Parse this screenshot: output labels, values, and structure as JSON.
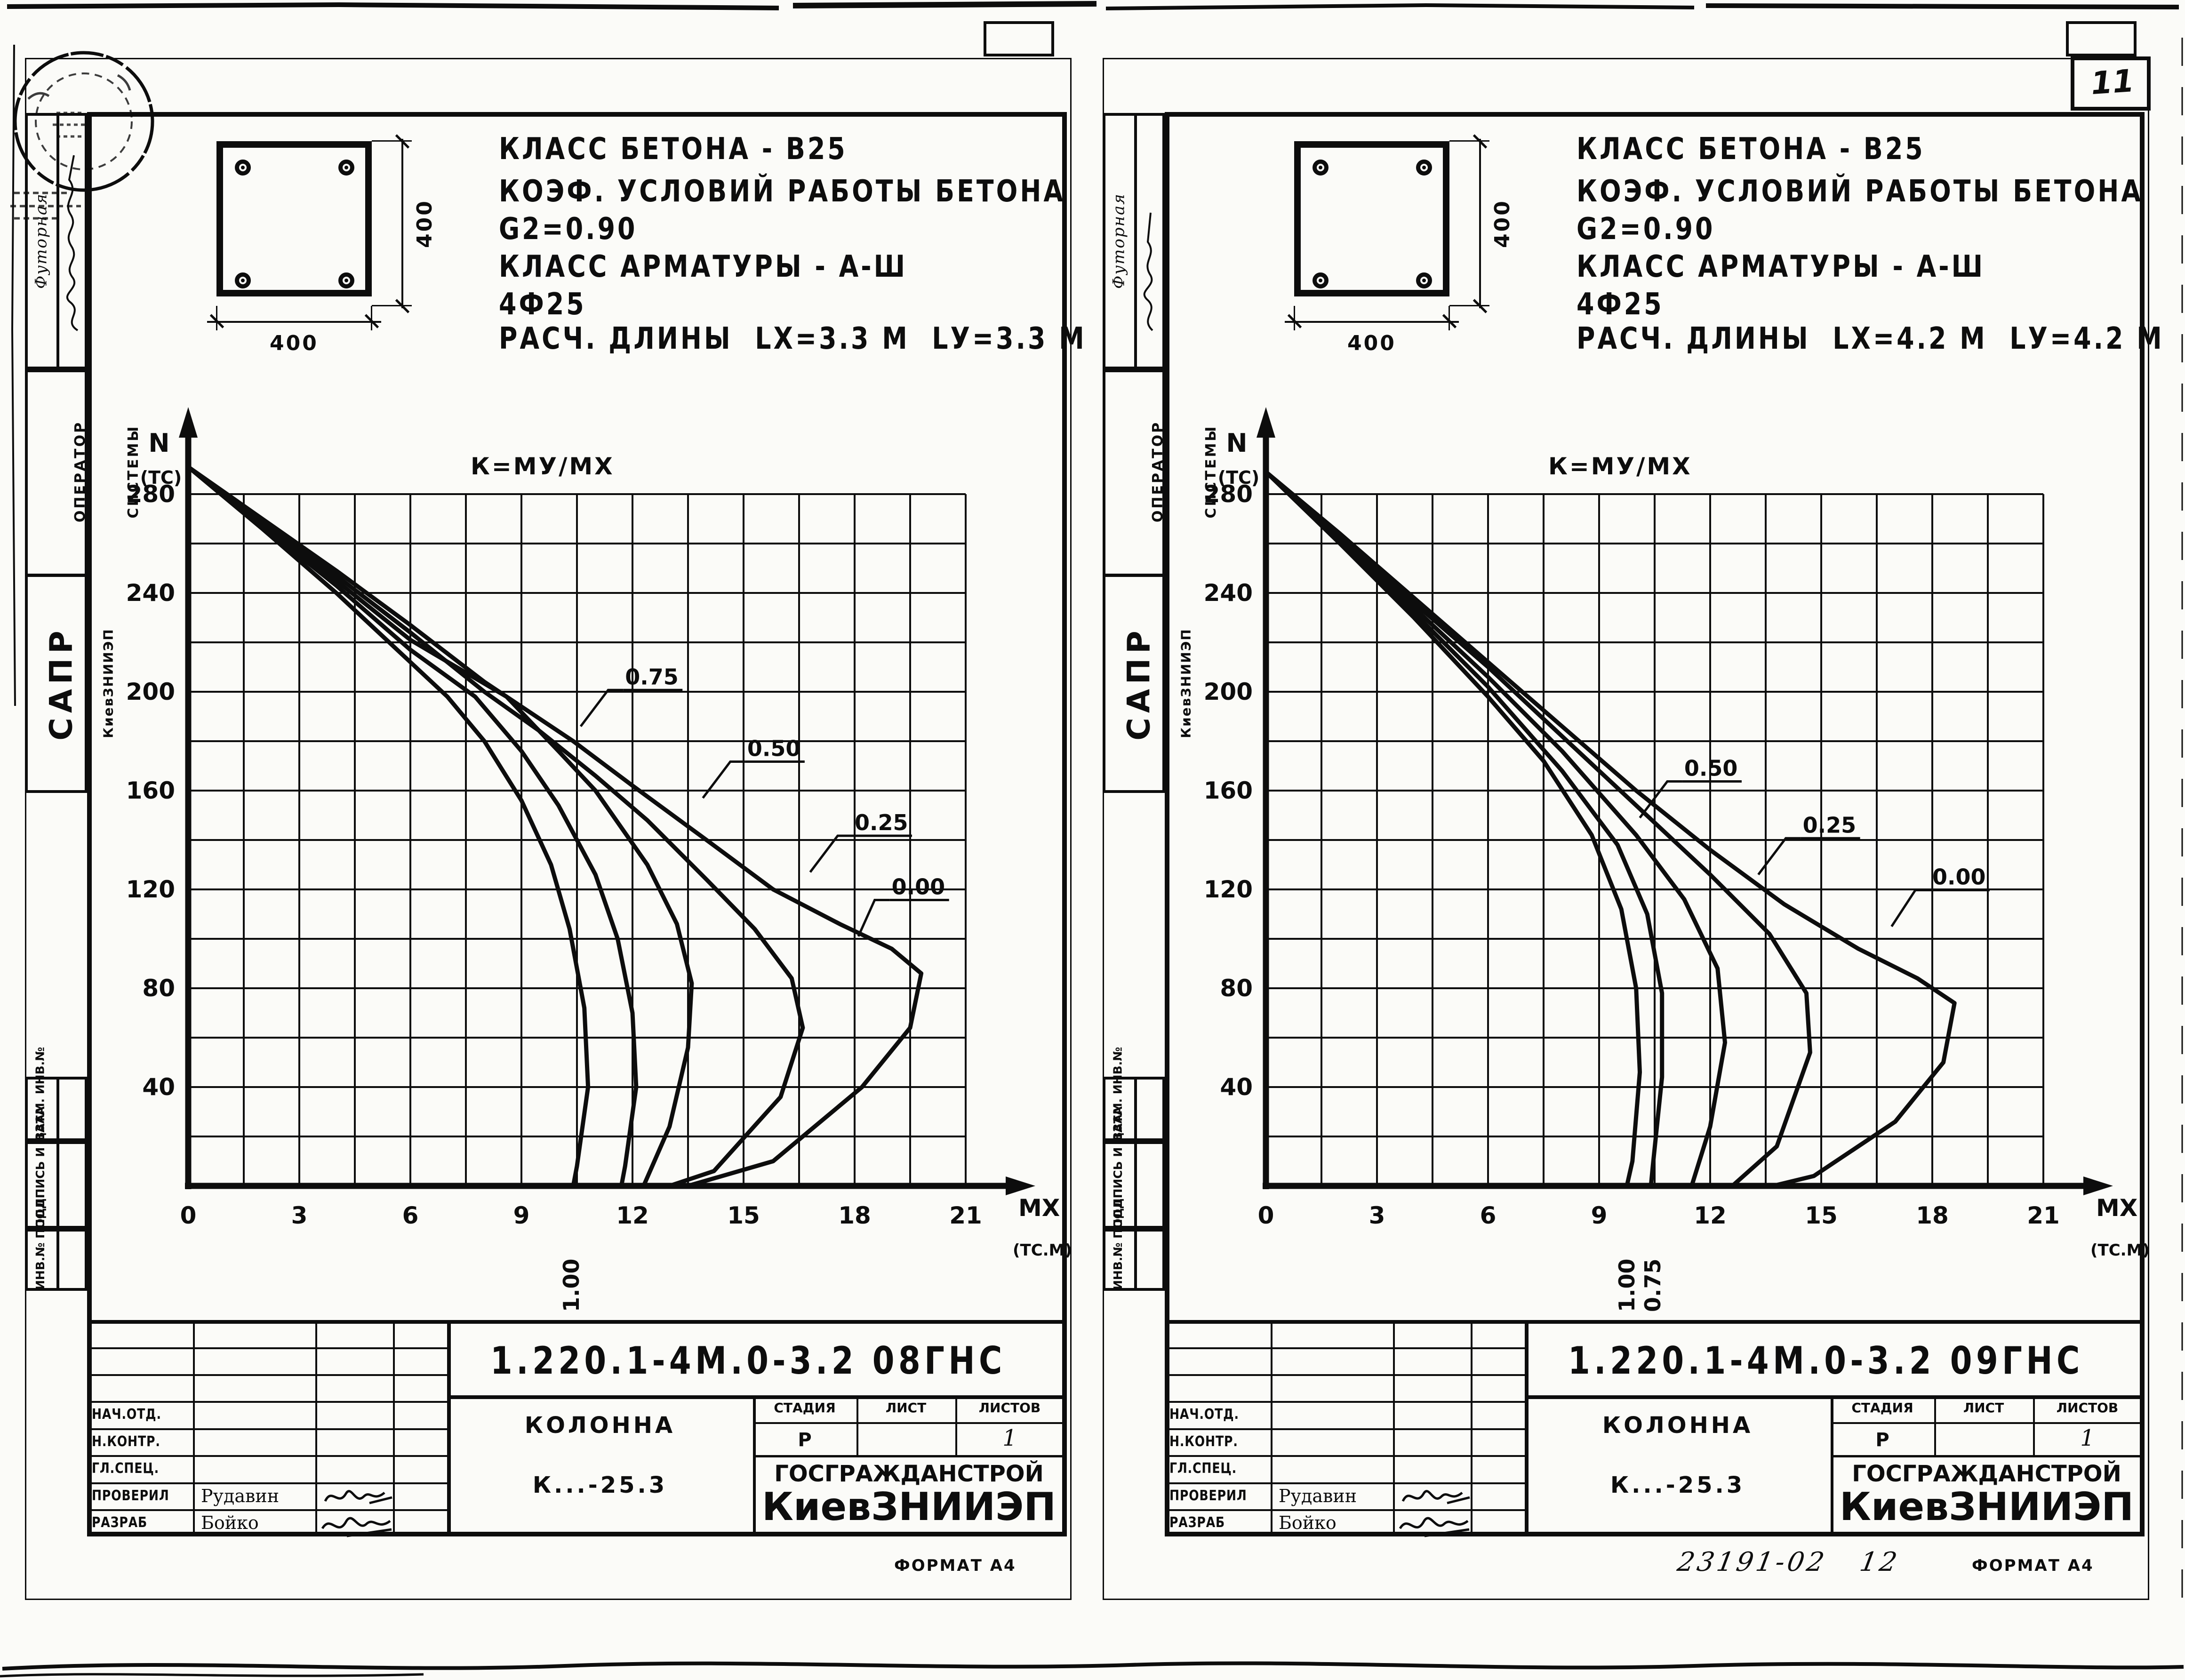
{
  "scan": {
    "page_number": "11",
    "format_note": "ФОРМАТ А4",
    "handwritten_note": "23191-02   12"
  },
  "sidebar": {
    "top_label": "Футорная",
    "operator": [
      "ОПЕРАТОР",
      "СИСТЕМЫ"
    ],
    "sapr": "САПР",
    "sapr_org": "КиевЗНИИЭП",
    "vzam": "ВЗАМ. ИНВ.№",
    "podpis": "ПОДПИСЬ И ДАТА",
    "inv": "ИНВ.№ ПОДЛ"
  },
  "titleblock": {
    "row_labels": [
      "НАЧ.ОТД.",
      "Н.КОНТР.",
      "ГЛ.СПЕЦ.",
      "ПРОВЕРИЛ",
      "РАЗРАБ"
    ],
    "proveril_name": "Рудавин",
    "razrab_name": "Бойко",
    "stage_headers": [
      "СТАДИЯ",
      "ЛИСТ",
      "ЛИСТОВ"
    ],
    "stage_value": "Р",
    "sheets_value": "1",
    "org_line1": "ГОСГРАЖДАНСТРОЙ",
    "org_line2": "КиевЗНИИЭП",
    "product": "КОЛОННА",
    "product_code": "К...-25.3"
  },
  "sheets": [
    {
      "doc_number": "1.220.1-4М.0-3.2 08ГНС",
      "section": {
        "width_dim": "400",
        "height_dim": "400"
      },
      "specs": [
        "КЛАСС БЕТОНА - В25",
        "КОЭФ. УСЛОВИЙ РАБОТЫ БЕТОНА",
        "G2=0.90",
        "КЛАСС АРМАТУРЫ - А-Ш",
        "4Ф25",
        "РАСЧ. ДЛИНЫ  LX=3.3 М  LУ=3.3 М"
      ]
    },
    {
      "doc_number": "1.220.1-4М.0-3.2 09ГНС",
      "section": {
        "width_dim": "400",
        "height_dim": "400"
      },
      "specs": [
        "КЛАСС БЕТОНА - В25",
        "КОЭФ. УСЛОВИЙ РАБОТЫ БЕТОНА",
        "G2=0.90",
        "КЛАСС АРМАТУРЫ - А-Ш",
        "4Ф25",
        "РАСЧ. ДЛИНЫ  LX=4.2 М  LУ=4.2 М"
      ]
    }
  ],
  "chart_data": [
    {
      "type": "line",
      "k_label": "К=МУ/МХ",
      "xlabel": "МХ",
      "xunit": "(ТС.М)",
      "ylabel": "N",
      "yunit": "(ТС)",
      "xlim": [
        0,
        21
      ],
      "ylim": [
        0,
        280
      ],
      "xticks": [
        0,
        3,
        6,
        9,
        12,
        15,
        18,
        21
      ],
      "yticks": [
        280,
        240,
        200,
        160,
        120,
        80,
        40
      ],
      "grid": true,
      "grid_step_x": 1.5,
      "grid_step_y": 20,
      "series": [
        {
          "name": "K=1.00",
          "points": [
            [
              0,
              291
            ],
            [
              2,
              266
            ],
            [
              4,
              240
            ],
            [
              6,
              212
            ],
            [
              7,
              198
            ],
            [
              8,
              180
            ],
            [
              9,
              156
            ],
            [
              9.8,
              130
            ],
            [
              10.3,
              104
            ],
            [
              10.7,
              72
            ],
            [
              10.8,
              40
            ],
            [
              10.5,
              8
            ],
            [
              10.4,
              0
            ]
          ]
        },
        {
          "name": "K=0.75",
          "points": [
            [
              0,
              291
            ],
            [
              2,
              267
            ],
            [
              4,
              243
            ],
            [
              6,
              217
            ],
            [
              7.75,
              198
            ],
            [
              9,
              176
            ],
            [
              10,
              154
            ],
            [
              11,
              126
            ],
            [
              11.6,
              100
            ],
            [
              12,
              70
            ],
            [
              12.1,
              40
            ],
            [
              11.8,
              8
            ],
            [
              11.7,
              0
            ]
          ]
        },
        {
          "name": "K=0.50",
          "points": [
            [
              0,
              291
            ],
            [
              2,
              268
            ],
            [
              4,
              245
            ],
            [
              6,
              221
            ],
            [
              8.6,
              198
            ],
            [
              10,
              176
            ],
            [
              11,
              160
            ],
            [
              12.4,
              130
            ],
            [
              13.2,
              106
            ],
            [
              13.6,
              82
            ],
            [
              13.5,
              56
            ],
            [
              13,
              24
            ],
            [
              12.3,
              0
            ]
          ]
        },
        {
          "name": "K=0.25",
          "points": [
            [
              0,
              291
            ],
            [
              2,
              269
            ],
            [
              4,
              247
            ],
            [
              6,
              224
            ],
            [
              8,
              200
            ],
            [
              9.5,
              184
            ],
            [
              11,
              166
            ],
            [
              12.4,
              148
            ],
            [
              14,
              124
            ],
            [
              15.3,
              104
            ],
            [
              16.3,
              84
            ],
            [
              16.6,
              64
            ],
            [
              16,
              36
            ],
            [
              14.2,
              6
            ],
            [
              13,
              0
            ]
          ]
        },
        {
          "name": "K=0.00",
          "points": [
            [
              0,
              291
            ],
            [
              2,
              270
            ],
            [
              4,
              249
            ],
            [
              6,
              227
            ],
            [
              8,
              204
            ],
            [
              10.4,
              180
            ],
            [
              12,
              162
            ],
            [
              14,
              140
            ],
            [
              15.8,
              120
            ],
            [
              17.6,
              106
            ],
            [
              19,
              96
            ],
            [
              19.8,
              86
            ],
            [
              19.5,
              64
            ],
            [
              18.2,
              40
            ],
            [
              15.8,
              10
            ],
            [
              13.5,
              0
            ]
          ]
        }
      ],
      "curve_labels": [
        {
          "text": "0.75",
          "at": [
            11.8,
            203
          ],
          "leader_to": [
            10.6,
            186
          ]
        },
        {
          "text": "0.50",
          "at": [
            15.1,
            174
          ],
          "leader_to": [
            13.9,
            157
          ]
        },
        {
          "text": "0.25",
          "at": [
            18.0,
            144
          ],
          "leader_to": [
            16.8,
            127
          ]
        },
        {
          "text": "0.00",
          "at": [
            19.0,
            118
          ],
          "leader_to": [
            18.1,
            101
          ]
        }
      ],
      "below_axis_labels": [
        {
          "text": "1.00",
          "x": 10.35
        }
      ]
    },
    {
      "type": "line",
      "k_label": "К=МУ/МХ",
      "xlabel": "МХ",
      "xunit": "(ТС.М)",
      "ylabel": "N",
      "yunit": "(ТС)",
      "xlim": [
        0,
        21
      ],
      "ylim": [
        0,
        280
      ],
      "xticks": [
        0,
        3,
        6,
        9,
        12,
        15,
        18,
        21
      ],
      "yticks": [
        280,
        240,
        200,
        160,
        120,
        80,
        40
      ],
      "grid": true,
      "grid_step_x": 1.5,
      "grid_step_y": 20,
      "series": [
        {
          "name": "K=1.00",
          "points": [
            [
              0,
              289
            ],
            [
              2,
              260
            ],
            [
              4,
              230
            ],
            [
              6,
              198
            ],
            [
              7.5,
              172
            ],
            [
              8.8,
              142
            ],
            [
              9.6,
              112
            ],
            [
              10,
              80
            ],
            [
              10.1,
              46
            ],
            [
              9.9,
              10
            ],
            [
              9.75,
              0
            ]
          ]
        },
        {
          "name": "K=0.75",
          "points": [
            [
              0,
              289
            ],
            [
              2,
              261
            ],
            [
              4,
              232
            ],
            [
              6,
              202
            ],
            [
              8,
              168
            ],
            [
              9.5,
              138
            ],
            [
              10.3,
              110
            ],
            [
              10.7,
              78
            ],
            [
              10.7,
              44
            ],
            [
              10.45,
              8
            ],
            [
              10.4,
              0
            ]
          ]
        },
        {
          "name": "K=0.50",
          "points": [
            [
              0,
              289
            ],
            [
              2,
              262
            ],
            [
              4,
              234
            ],
            [
              6,
              206
            ],
            [
              8,
              176
            ],
            [
              10,
              142
            ],
            [
              11.3,
              116
            ],
            [
              12.2,
              88
            ],
            [
              12.4,
              58
            ],
            [
              12,
              24
            ],
            [
              11.5,
              0
            ]
          ]
        },
        {
          "name": "K=0.25",
          "points": [
            [
              0,
              289
            ],
            [
              2,
              263
            ],
            [
              4,
              236
            ],
            [
              6,
              210
            ],
            [
              8,
              182
            ],
            [
              10,
              154
            ],
            [
              12,
              126
            ],
            [
              13.6,
              102
            ],
            [
              14.6,
              78
            ],
            [
              14.7,
              54
            ],
            [
              13.8,
              16
            ],
            [
              12.6,
              0
            ]
          ]
        },
        {
          "name": "K=0.00",
          "points": [
            [
              0,
              289
            ],
            [
              2,
              264
            ],
            [
              4,
              238
            ],
            [
              6,
              212
            ],
            [
              8,
              186
            ],
            [
              10,
              160
            ],
            [
              12,
              136
            ],
            [
              14,
              114
            ],
            [
              16,
              96
            ],
            [
              17.6,
              84
            ],
            [
              18.6,
              74
            ],
            [
              18.3,
              50
            ],
            [
              17,
              26
            ],
            [
              14.8,
              4
            ],
            [
              13.7,
              0
            ]
          ]
        }
      ],
      "curve_labels": [
        {
          "text": "0.50",
          "at": [
            11.3,
            166
          ],
          "leader_to": [
            10.1,
            149
          ]
        },
        {
          "text": "0.25",
          "at": [
            14.5,
            143
          ],
          "leader_to": [
            13.3,
            126
          ]
        },
        {
          "text": "0.00",
          "at": [
            18.0,
            122
          ],
          "leader_to": [
            16.9,
            105
          ]
        }
      ],
      "below_axis_labels": [
        {
          "text": "1.00",
          "x": 9.75
        },
        {
          "text": "0.75",
          "x": 10.45
        }
      ]
    }
  ]
}
